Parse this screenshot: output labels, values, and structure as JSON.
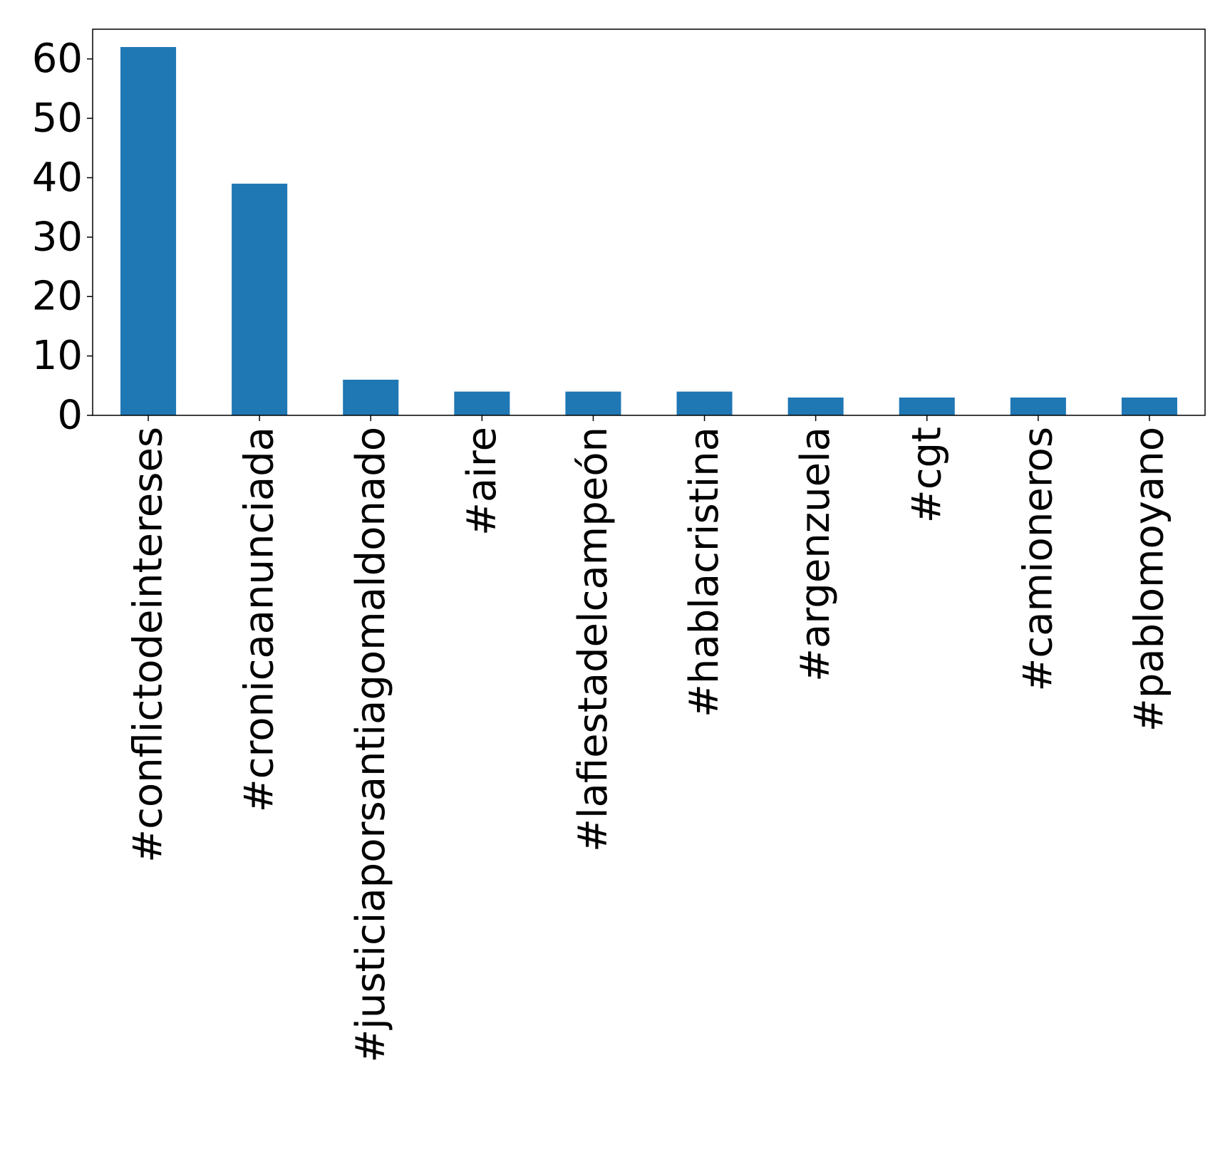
{
  "chart_data": {
    "type": "bar",
    "categories": [
      "#conflictodeintereses",
      "#cronicaanunciada",
      "#justiciaporsantiagomaldonado",
      "#aire",
      "#lafiestadelcampeón",
      "#hablacristina",
      "#argenzuela",
      "#cgt",
      "#camioneros",
      "#pablomoyano"
    ],
    "values": [
      62,
      39,
      6,
      4,
      4,
      4,
      3,
      3,
      3,
      3
    ],
    "ylim": [
      0,
      65
    ],
    "yticks": [
      "0",
      "10",
      "20",
      "30",
      "40",
      "50",
      "60"
    ],
    "bar_color": "#1f77b4",
    "grid": false,
    "legend": "none"
  }
}
